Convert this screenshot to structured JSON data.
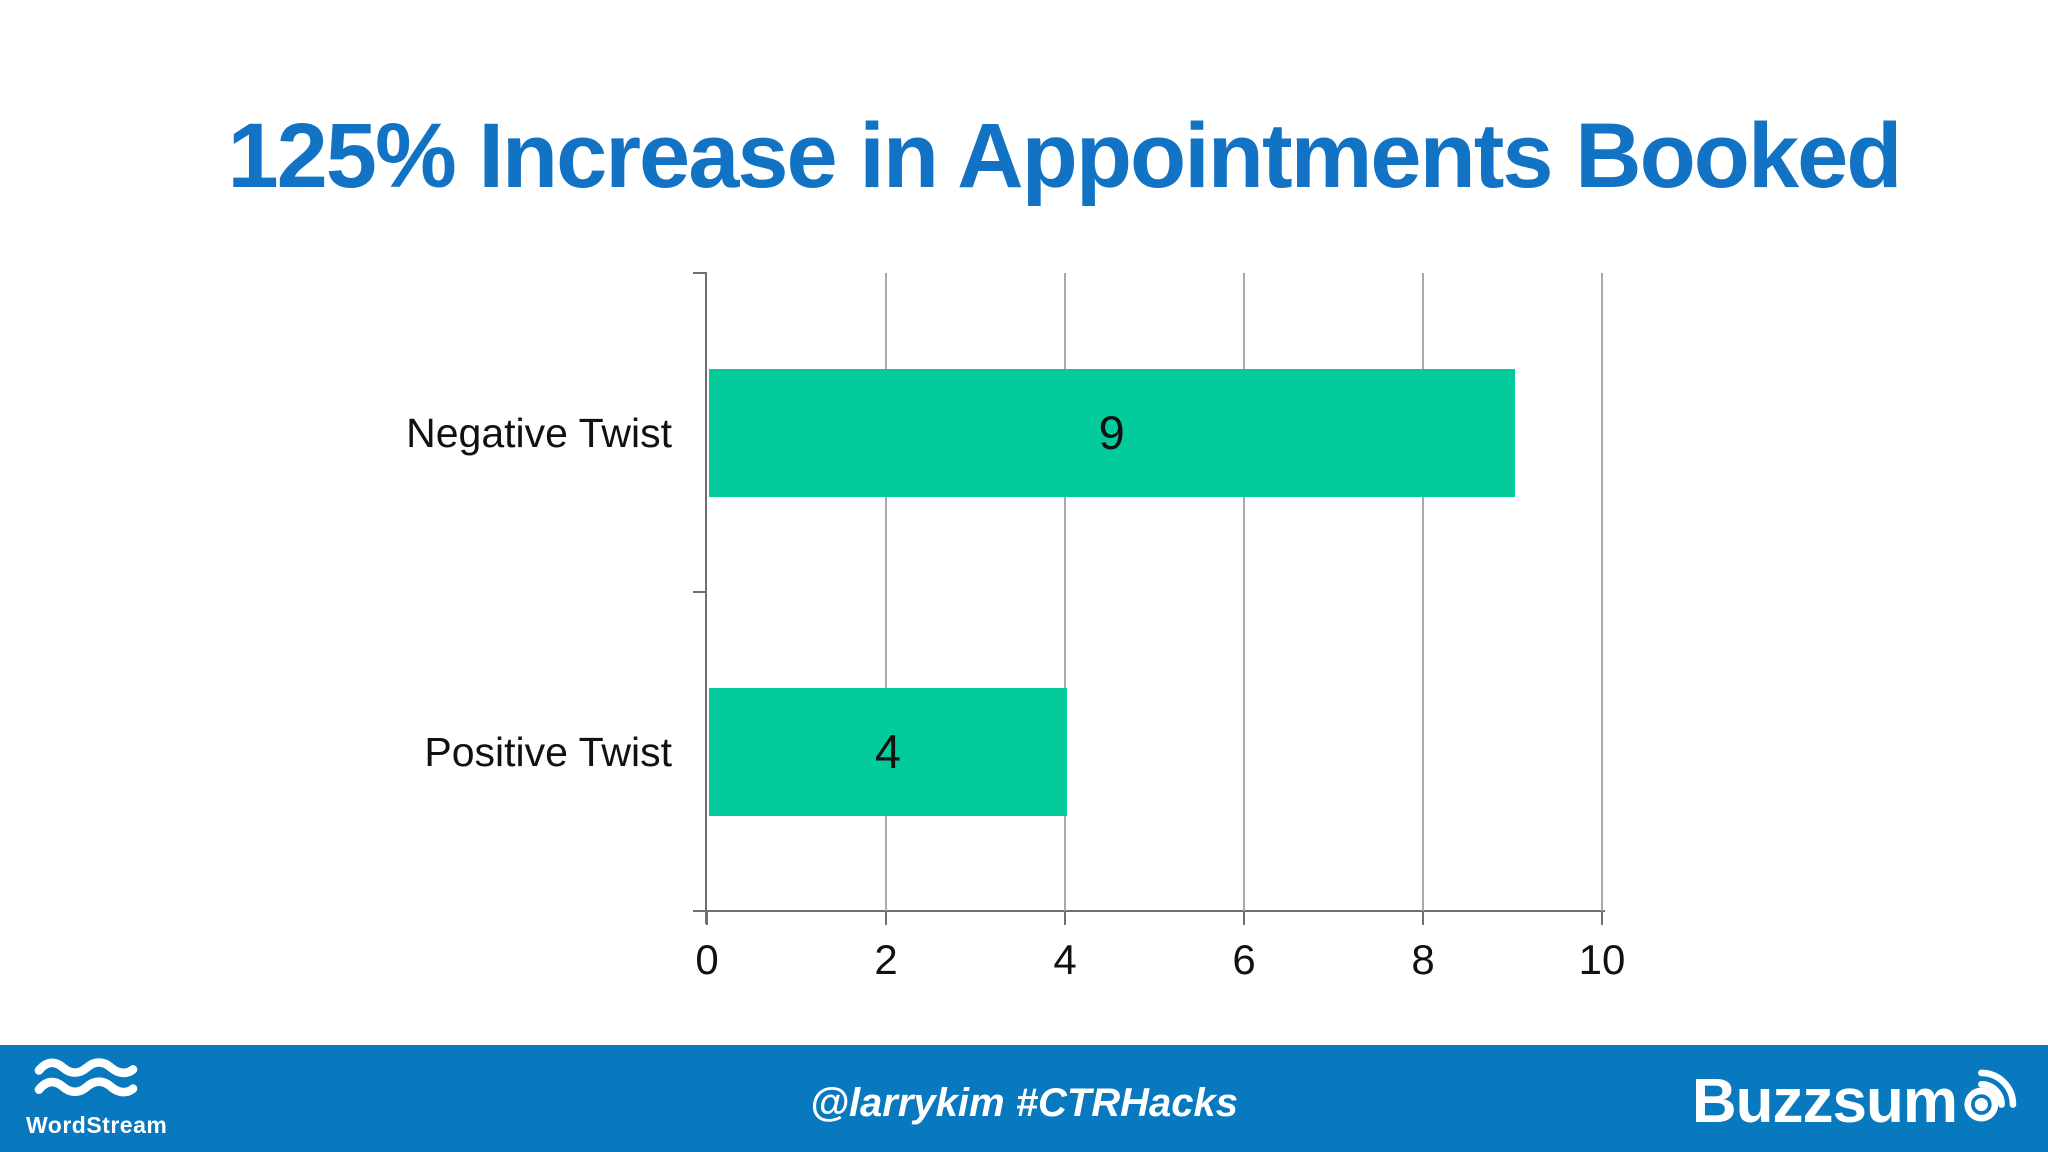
{
  "slide": {
    "title": "125% Increase in Appointments Booked"
  },
  "chart_data": {
    "type": "bar",
    "orientation": "horizontal",
    "title": "125% Increase in Appointments Booked",
    "categories": [
      "Negative Twist",
      "Positive Twist"
    ],
    "values": [
      9,
      4
    ],
    "xlim": [
      0,
      10
    ],
    "xticks": [
      0,
      2,
      4,
      6,
      8,
      10
    ],
    "grid": true,
    "legend": false,
    "bar_color": "#04cb9b",
    "value_labels": [
      9,
      4
    ]
  },
  "footer": {
    "wordstream": {
      "label": "WordStream",
      "icon": "waves-icon"
    },
    "center_text": "@larrykim #CTRHacks",
    "buzzsumo": {
      "label": "Buzzsum",
      "icon": "radar-dot-icon"
    }
  },
  "colors": {
    "title_blue": "#1273c4",
    "footer_blue": "#0879be",
    "bar_green": "#04cb9b",
    "gridline_gray": "#a9a9a9",
    "axis_gray": "#6f6f6f",
    "text_black": "#111111"
  }
}
